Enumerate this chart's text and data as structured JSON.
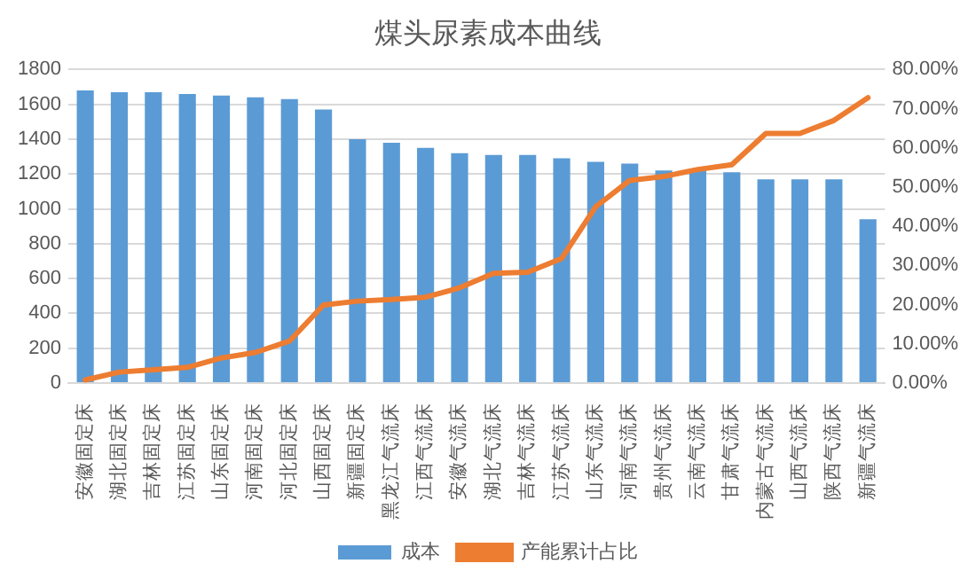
{
  "chart_data": {
    "type": "bar",
    "title": "煤头尿素成本曲线",
    "categories": [
      "安徽固定床",
      "湖北固定床",
      "吉林固定床",
      "江苏固定床",
      "山东固定床",
      "河南固定床",
      "河北固定床",
      "山西固定床",
      "新疆固定床",
      "黑龙江气流床",
      "江西气流床",
      "安徽气流床",
      "湖北气流床",
      "吉林气流床",
      "江苏气流床",
      "山东气流床",
      "河南气流床",
      "贵州气流床",
      "云南气流床",
      "甘肃气流床",
      "内蒙古气流床",
      "山西气流床",
      "陕西气流床",
      "新疆气流床"
    ],
    "series": [
      {
        "name": "成本",
        "color": "#5b9bd5",
        "values": [
          1680,
          1670,
          1670,
          1660,
          1650,
          1640,
          1630,
          1570,
          1400,
          1380,
          1350,
          1320,
          1310,
          1310,
          1290,
          1270,
          1260,
          1220,
          1220,
          1210,
          1170,
          1170,
          1170,
          940
        ]
      },
      {
        "name": "产能累计占比",
        "type": "line",
        "axis": "y2",
        "color": "#ed7d31",
        "values": [
          0.8,
          2.8,
          3.4,
          4,
          6.4,
          7.8,
          10.7,
          19.9,
          20.9,
          21.3,
          21.9,
          24.3,
          28,
          28.3,
          31.8,
          45,
          51.7,
          52.7,
          54.5,
          55.7,
          63.7,
          63.7,
          67,
          72.8
        ]
      }
    ],
    "ylim": [
      0,
      1800
    ],
    "yticks": [
      0,
      200,
      400,
      600,
      800,
      1000,
      1200,
      1400,
      1600,
      1800
    ],
    "y2lim": [
      0,
      80
    ],
    "y2ticks": [
      {
        "value": 0,
        "label": "0.00%"
      },
      {
        "value": 10,
        "label": "10.00%"
      },
      {
        "value": 20,
        "label": "20.00%"
      },
      {
        "value": 30,
        "label": "30.00%"
      },
      {
        "value": 40,
        "label": "40.00%"
      },
      {
        "value": 50,
        "label": "50.00%"
      },
      {
        "value": 60,
        "label": "60.00%"
      },
      {
        "value": 70,
        "label": "70.00%"
      },
      {
        "value": 80,
        "label": "80.00%"
      }
    ],
    "grid": "y",
    "legend": "bottom",
    "marker": "none"
  }
}
